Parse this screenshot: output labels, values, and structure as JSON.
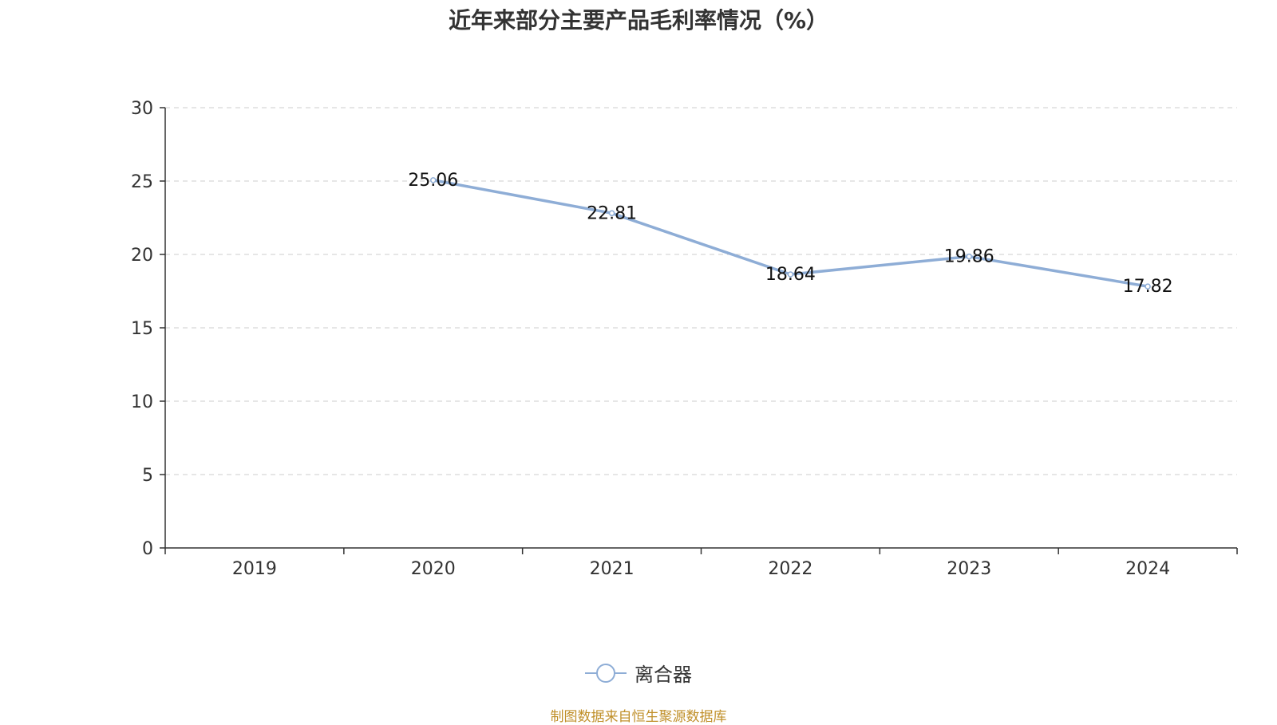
{
  "chart_data": {
    "type": "line",
    "title": "近年来部分主要产品毛利率情况（%）",
    "categories": [
      "2019",
      "2020",
      "2021",
      "2022",
      "2023",
      "2024"
    ],
    "series": [
      {
        "name": "离合器",
        "values": [
          null,
          25.06,
          22.81,
          18.64,
          19.86,
          17.82
        ],
        "labels": [
          "",
          "25.06",
          "22.81",
          "18.64",
          "19.86",
          "17.82"
        ],
        "color": "#8eadd6"
      }
    ],
    "ylim": [
      0,
      30
    ],
    "yticks": [
      "0",
      "5",
      "10",
      "15",
      "20",
      "25",
      "30"
    ],
    "grid": true,
    "legend": "bottom-center",
    "xlabel": "",
    "ylabel": ""
  },
  "footer": {
    "source": "制图数据来自恒生聚源数据库"
  },
  "colors": {
    "series": "#8eadd6",
    "grid": "#cccccc",
    "axis": "#333333",
    "source": "#c0902a"
  }
}
